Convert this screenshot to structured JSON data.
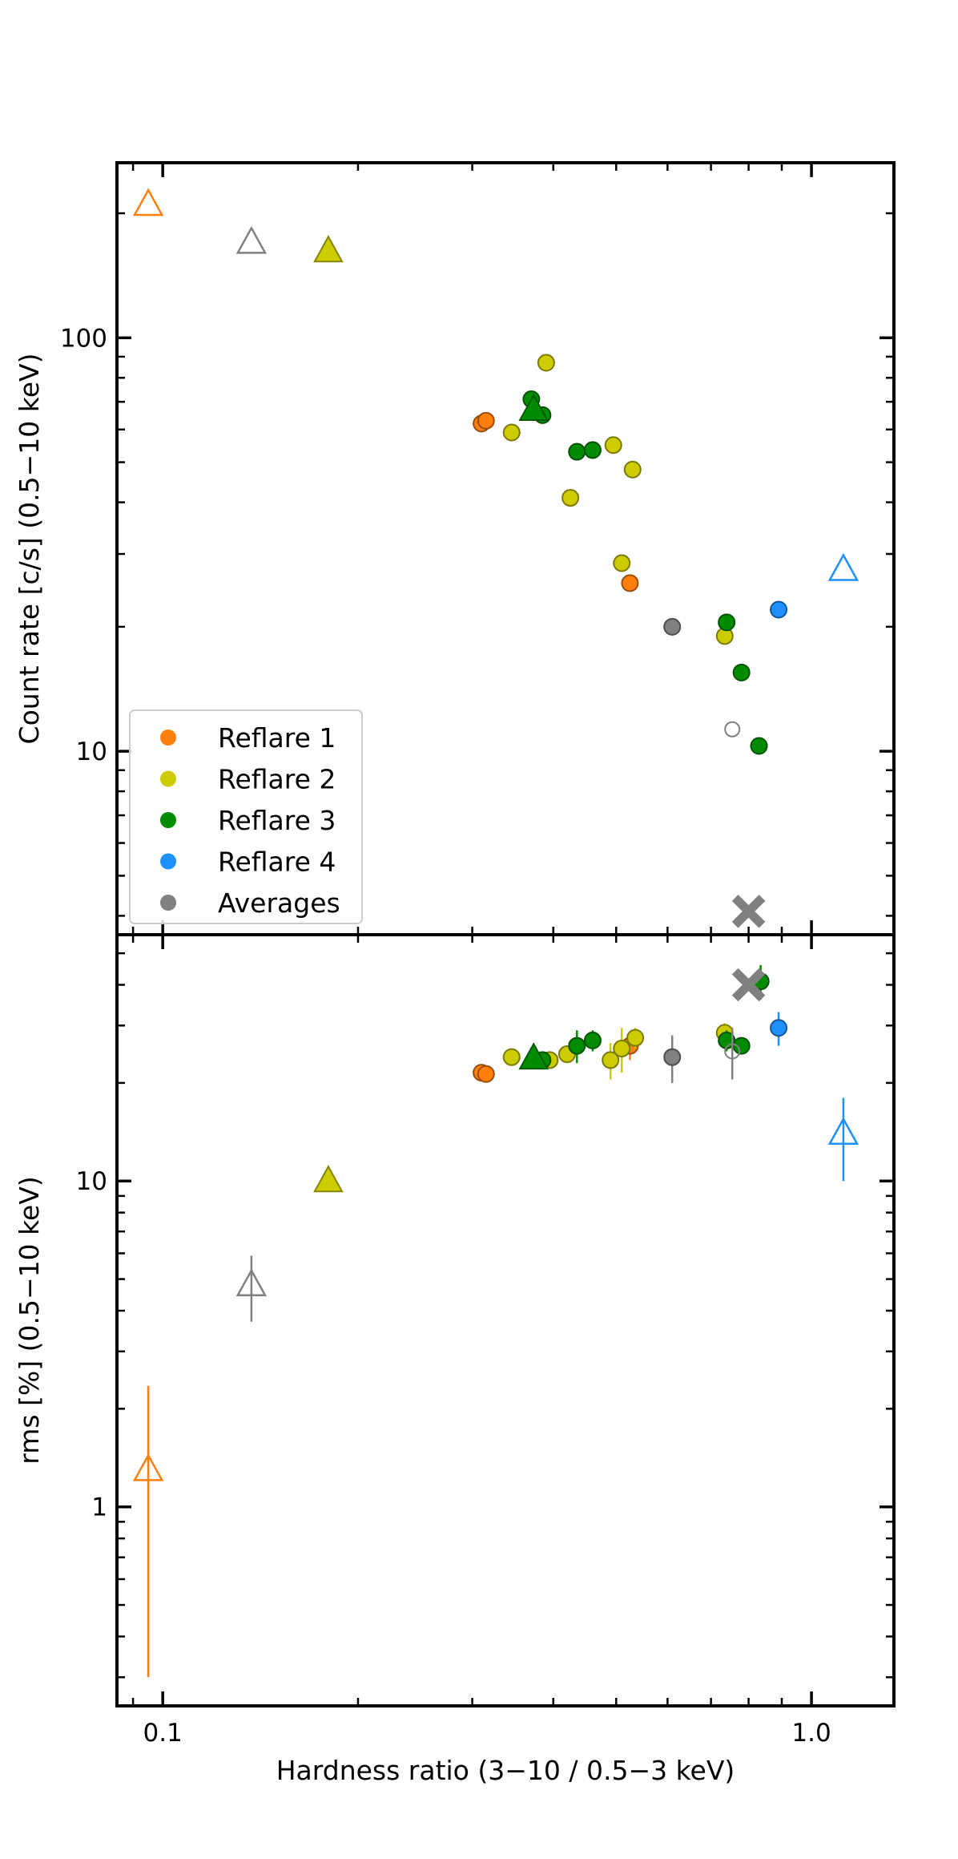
{
  "chart_data": {
    "type": "scatter",
    "shared_x": {
      "label": "Hardness ratio (3−10 / 0.5−3 keV)",
      "scale": "log",
      "range": [
        0.085,
        1.34
      ],
      "ticks": [
        {
          "value": 0.1,
          "label": "0.1"
        },
        {
          "value": 1.0,
          "label": "1.0"
        }
      ]
    },
    "colors": {
      "Reflare 1": "#ff7f0e",
      "Reflare 2": "#cccc00",
      "Reflare 3": "#008c00",
      "Reflare 4": "#1e90ff",
      "Averages": "#808080"
    },
    "legend": {
      "placement": "lower-left of top panel",
      "entries": [
        "Reflare 1",
        "Reflare 2",
        "Reflare 3",
        "Reflare 4",
        "Averages"
      ]
    },
    "panels": [
      {
        "id": "count-rate",
        "ylabel": "Count rate [c/s] (0.5−10 keV)",
        "yscale": "log",
        "ylim": [
          3.6,
          265
        ],
        "yticks": [
          {
            "value": 10,
            "label": "10"
          },
          {
            "value": 100,
            "label": "100"
          }
        ],
        "series": [
          {
            "name": "Reflare 1",
            "points": [
              {
                "x": 0.31,
                "y": 62,
                "marker": "circle"
              },
              {
                "x": 0.315,
                "y": 63,
                "marker": "circle"
              },
              {
                "x": 0.525,
                "y": 25.5,
                "marker": "circle"
              },
              {
                "x": 0.095,
                "y": 210,
                "marker": "triangle-open"
              }
            ]
          },
          {
            "name": "Reflare 2",
            "points": [
              {
                "x": 0.345,
                "y": 59,
                "marker": "circle"
              },
              {
                "x": 0.39,
                "y": 87,
                "marker": "circle"
              },
              {
                "x": 0.425,
                "y": 41,
                "marker": "circle"
              },
              {
                "x": 0.495,
                "y": 55,
                "marker": "circle"
              },
              {
                "x": 0.53,
                "y": 48,
                "marker": "circle"
              },
              {
                "x": 0.51,
                "y": 28.5,
                "marker": "circle"
              },
              {
                "x": 0.735,
                "y": 19,
                "marker": "circle"
              },
              {
                "x": 0.18,
                "y": 162,
                "marker": "triangle"
              }
            ]
          },
          {
            "name": "Reflare 3",
            "points": [
              {
                "x": 0.37,
                "y": 71,
                "marker": "circle"
              },
              {
                "x": 0.385,
                "y": 65,
                "marker": "circle"
              },
              {
                "x": 0.435,
                "y": 53,
                "marker": "circle"
              },
              {
                "x": 0.46,
                "y": 53.5,
                "marker": "circle"
              },
              {
                "x": 0.74,
                "y": 20.5,
                "marker": "circle"
              },
              {
                "x": 0.78,
                "y": 15.5,
                "marker": "circle"
              },
              {
                "x": 0.83,
                "y": 10.3,
                "marker": "circle"
              },
              {
                "x": 0.373,
                "y": 67,
                "marker": "triangle"
              }
            ]
          },
          {
            "name": "Reflare 4",
            "points": [
              {
                "x": 0.89,
                "y": 22,
                "marker": "circle"
              },
              {
                "x": 1.12,
                "y": 27.5,
                "marker": "triangle-open"
              }
            ]
          },
          {
            "name": "Averages",
            "points": [
              {
                "x": 0.61,
                "y": 20,
                "marker": "circle"
              },
              {
                "x": 0.755,
                "y": 11.3,
                "marker": "circle-open"
              },
              {
                "x": 0.137,
                "y": 170,
                "marker": "triangle-open"
              },
              {
                "x": 0.8,
                "y": 4.1,
                "marker": "x"
              }
            ]
          }
        ]
      },
      {
        "id": "rms",
        "ylabel": "rms [%] (0.5−10 keV)",
        "yscale": "log",
        "ylim": [
          0.245,
          57
        ],
        "yticks": [
          {
            "value": 1,
            "label": "1"
          },
          {
            "value": 10,
            "label": "10"
          }
        ],
        "series": [
          {
            "name": "Reflare 1",
            "points": [
              {
                "x": 0.31,
                "y": 21.5,
                "yerr": 0.8,
                "marker": "circle"
              },
              {
                "x": 0.315,
                "y": 21.3,
                "yerr": 0.8,
                "marker": "circle"
              },
              {
                "x": 0.525,
                "y": 26,
                "yerr": 2.5,
                "marker": "circle"
              },
              {
                "x": 0.095,
                "y": 1.3,
                "yerr_low": 1.0,
                "yerr_high": 1.05,
                "marker": "triangle-open"
              }
            ]
          },
          {
            "name": "Reflare 2",
            "points": [
              {
                "x": 0.345,
                "y": 24,
                "yerr": 1,
                "marker": "circle"
              },
              {
                "x": 0.395,
                "y": 23.5,
                "yerr": 1,
                "marker": "circle"
              },
              {
                "x": 0.42,
                "y": 24.5,
                "yerr": 1.5,
                "marker": "circle"
              },
              {
                "x": 0.49,
                "y": 23.5,
                "yerr": 3,
                "marker": "circle"
              },
              {
                "x": 0.51,
                "y": 25.5,
                "yerr": 4,
                "marker": "circle"
              },
              {
                "x": 0.535,
                "y": 27.5,
                "yerr": 2,
                "marker": "circle"
              },
              {
                "x": 0.735,
                "y": 28.5,
                "yerr": 2,
                "marker": "circle"
              },
              {
                "x": 0.18,
                "y": 10,
                "marker": "triangle"
              }
            ]
          },
          {
            "name": "Reflare 3",
            "points": [
              {
                "x": 0.385,
                "y": 23.5,
                "yerr": 1.5,
                "marker": "circle"
              },
              {
                "x": 0.435,
                "y": 26,
                "yerr": 3,
                "marker": "circle"
              },
              {
                "x": 0.46,
                "y": 27,
                "yerr": 2,
                "marker": "circle"
              },
              {
                "x": 0.74,
                "y": 27,
                "yerr": 2,
                "marker": "circle"
              },
              {
                "x": 0.78,
                "y": 26,
                "yerr": 1.5,
                "marker": "circle"
              },
              {
                "x": 0.835,
                "y": 41,
                "yerr": 5,
                "marker": "circle"
              },
              {
                "x": 0.373,
                "y": 23.8,
                "marker": "triangle"
              }
            ]
          },
          {
            "name": "Reflare 4",
            "points": [
              {
                "x": 0.89,
                "y": 29.5,
                "yerr": 3.5,
                "marker": "circle"
              },
              {
                "x": 1.12,
                "y": 14,
                "yerr": 4,
                "marker": "triangle-open"
              }
            ]
          },
          {
            "name": "Averages",
            "points": [
              {
                "x": 0.61,
                "y": 24,
                "yerr": 4,
                "marker": "circle"
              },
              {
                "x": 0.755,
                "y": 25,
                "yerr": 4.5,
                "marker": "circle-open"
              },
              {
                "x": 0.137,
                "y": 4.8,
                "yerr": 1.1,
                "marker": "triangle-open"
              },
              {
                "x": 0.8,
                "y": 40,
                "marker": "x"
              }
            ]
          }
        ]
      }
    ]
  }
}
